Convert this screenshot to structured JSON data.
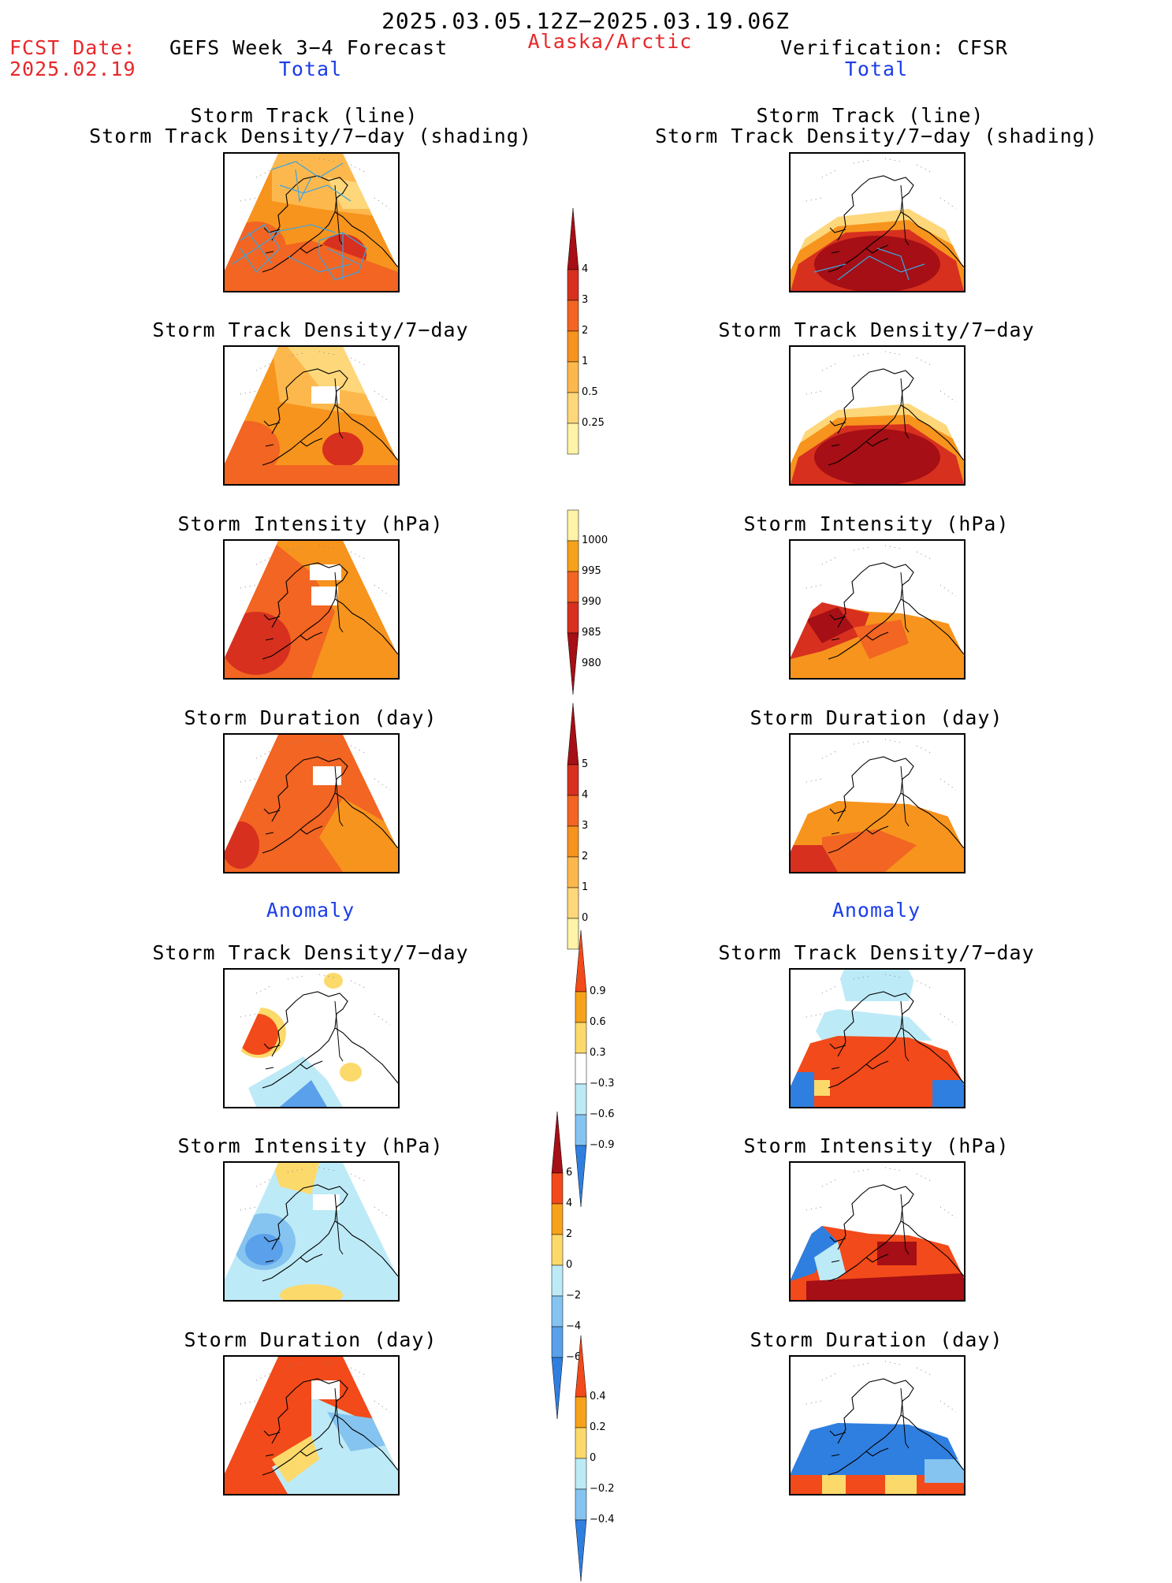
{
  "header": {
    "date_range": "2025.03.05.12Z−2025.03.19.06Z",
    "fcst_label": "FCST Date:",
    "fcst_date": "2025.02.19",
    "forecast_title": "GEFS Week 3−4 Forecast",
    "region": "Alaska/Arctic",
    "verification": "Verification: CFSR"
  },
  "sections": {
    "total_left": "Total",
    "total_right": "Total",
    "anomaly_left": "Anomaly",
    "anomaly_right": "Anomaly"
  },
  "panels": {
    "track_title_1": "Storm Track (line)",
    "track_title_2": "Storm Track Density/7−day (shading)",
    "density": "Storm Track Density/7−day",
    "intensity": "Storm Intensity (hPa)",
    "duration": "Storm Duration (day)"
  },
  "colorbars": {
    "density": {
      "labels": [
        "4",
        "3",
        "2",
        "1",
        "0.5",
        "0.25"
      ],
      "colors": [
        "#a50f15",
        "#d7301f",
        "#f26522",
        "#f7941d",
        "#fdb84d",
        "#fdd77a",
        "#fef3a6"
      ]
    },
    "intensity": {
      "labels": [
        "1000",
        "995",
        "990",
        "985",
        "980"
      ],
      "colors": [
        "#fef3a6",
        "#f7a21b",
        "#f26522",
        "#d7301f",
        "#a50f15"
      ]
    },
    "duration": {
      "labels": [
        "5",
        "4",
        "3",
        "2",
        "1",
        "0"
      ],
      "colors": [
        "#a50f15",
        "#d7301f",
        "#f26522",
        "#f7941d",
        "#fdb84d",
        "#fdd77a",
        "#fef3a6"
      ]
    },
    "anom_density": {
      "labels": [
        "0.9",
        "0.6",
        "0.3",
        "−0.3",
        "−0.6",
        "−0.9"
      ],
      "colors": [
        "#f24a1a",
        "#f7a21b",
        "#fcd96b",
        "#ffffff",
        "#bdeaf7",
        "#85c4f0",
        "#2f7fe0"
      ]
    },
    "anom_intensity": {
      "labels": [
        "6",
        "4",
        "2",
        "0",
        "−2",
        "−4",
        "−6"
      ],
      "colors": [
        "#a50f15",
        "#f24a1a",
        "#f7a21b",
        "#fcd96b",
        "#bdeaf7",
        "#85c4f0",
        "#5aa0ea",
        "#2f7fe0"
      ]
    },
    "anom_duration": {
      "labels": [
        "0.4",
        "0.2",
        "0",
        "−0.2",
        "−0.4"
      ],
      "colors": [
        "#f24a1a",
        "#f7a21b",
        "#fcd96b",
        "#bdeaf7",
        "#85c4f0",
        "#2f7fe0"
      ]
    }
  },
  "colors": {
    "title_red": "#e8272a",
    "section_blue": "#1b3de8",
    "track_line": "#3fa3e0"
  }
}
